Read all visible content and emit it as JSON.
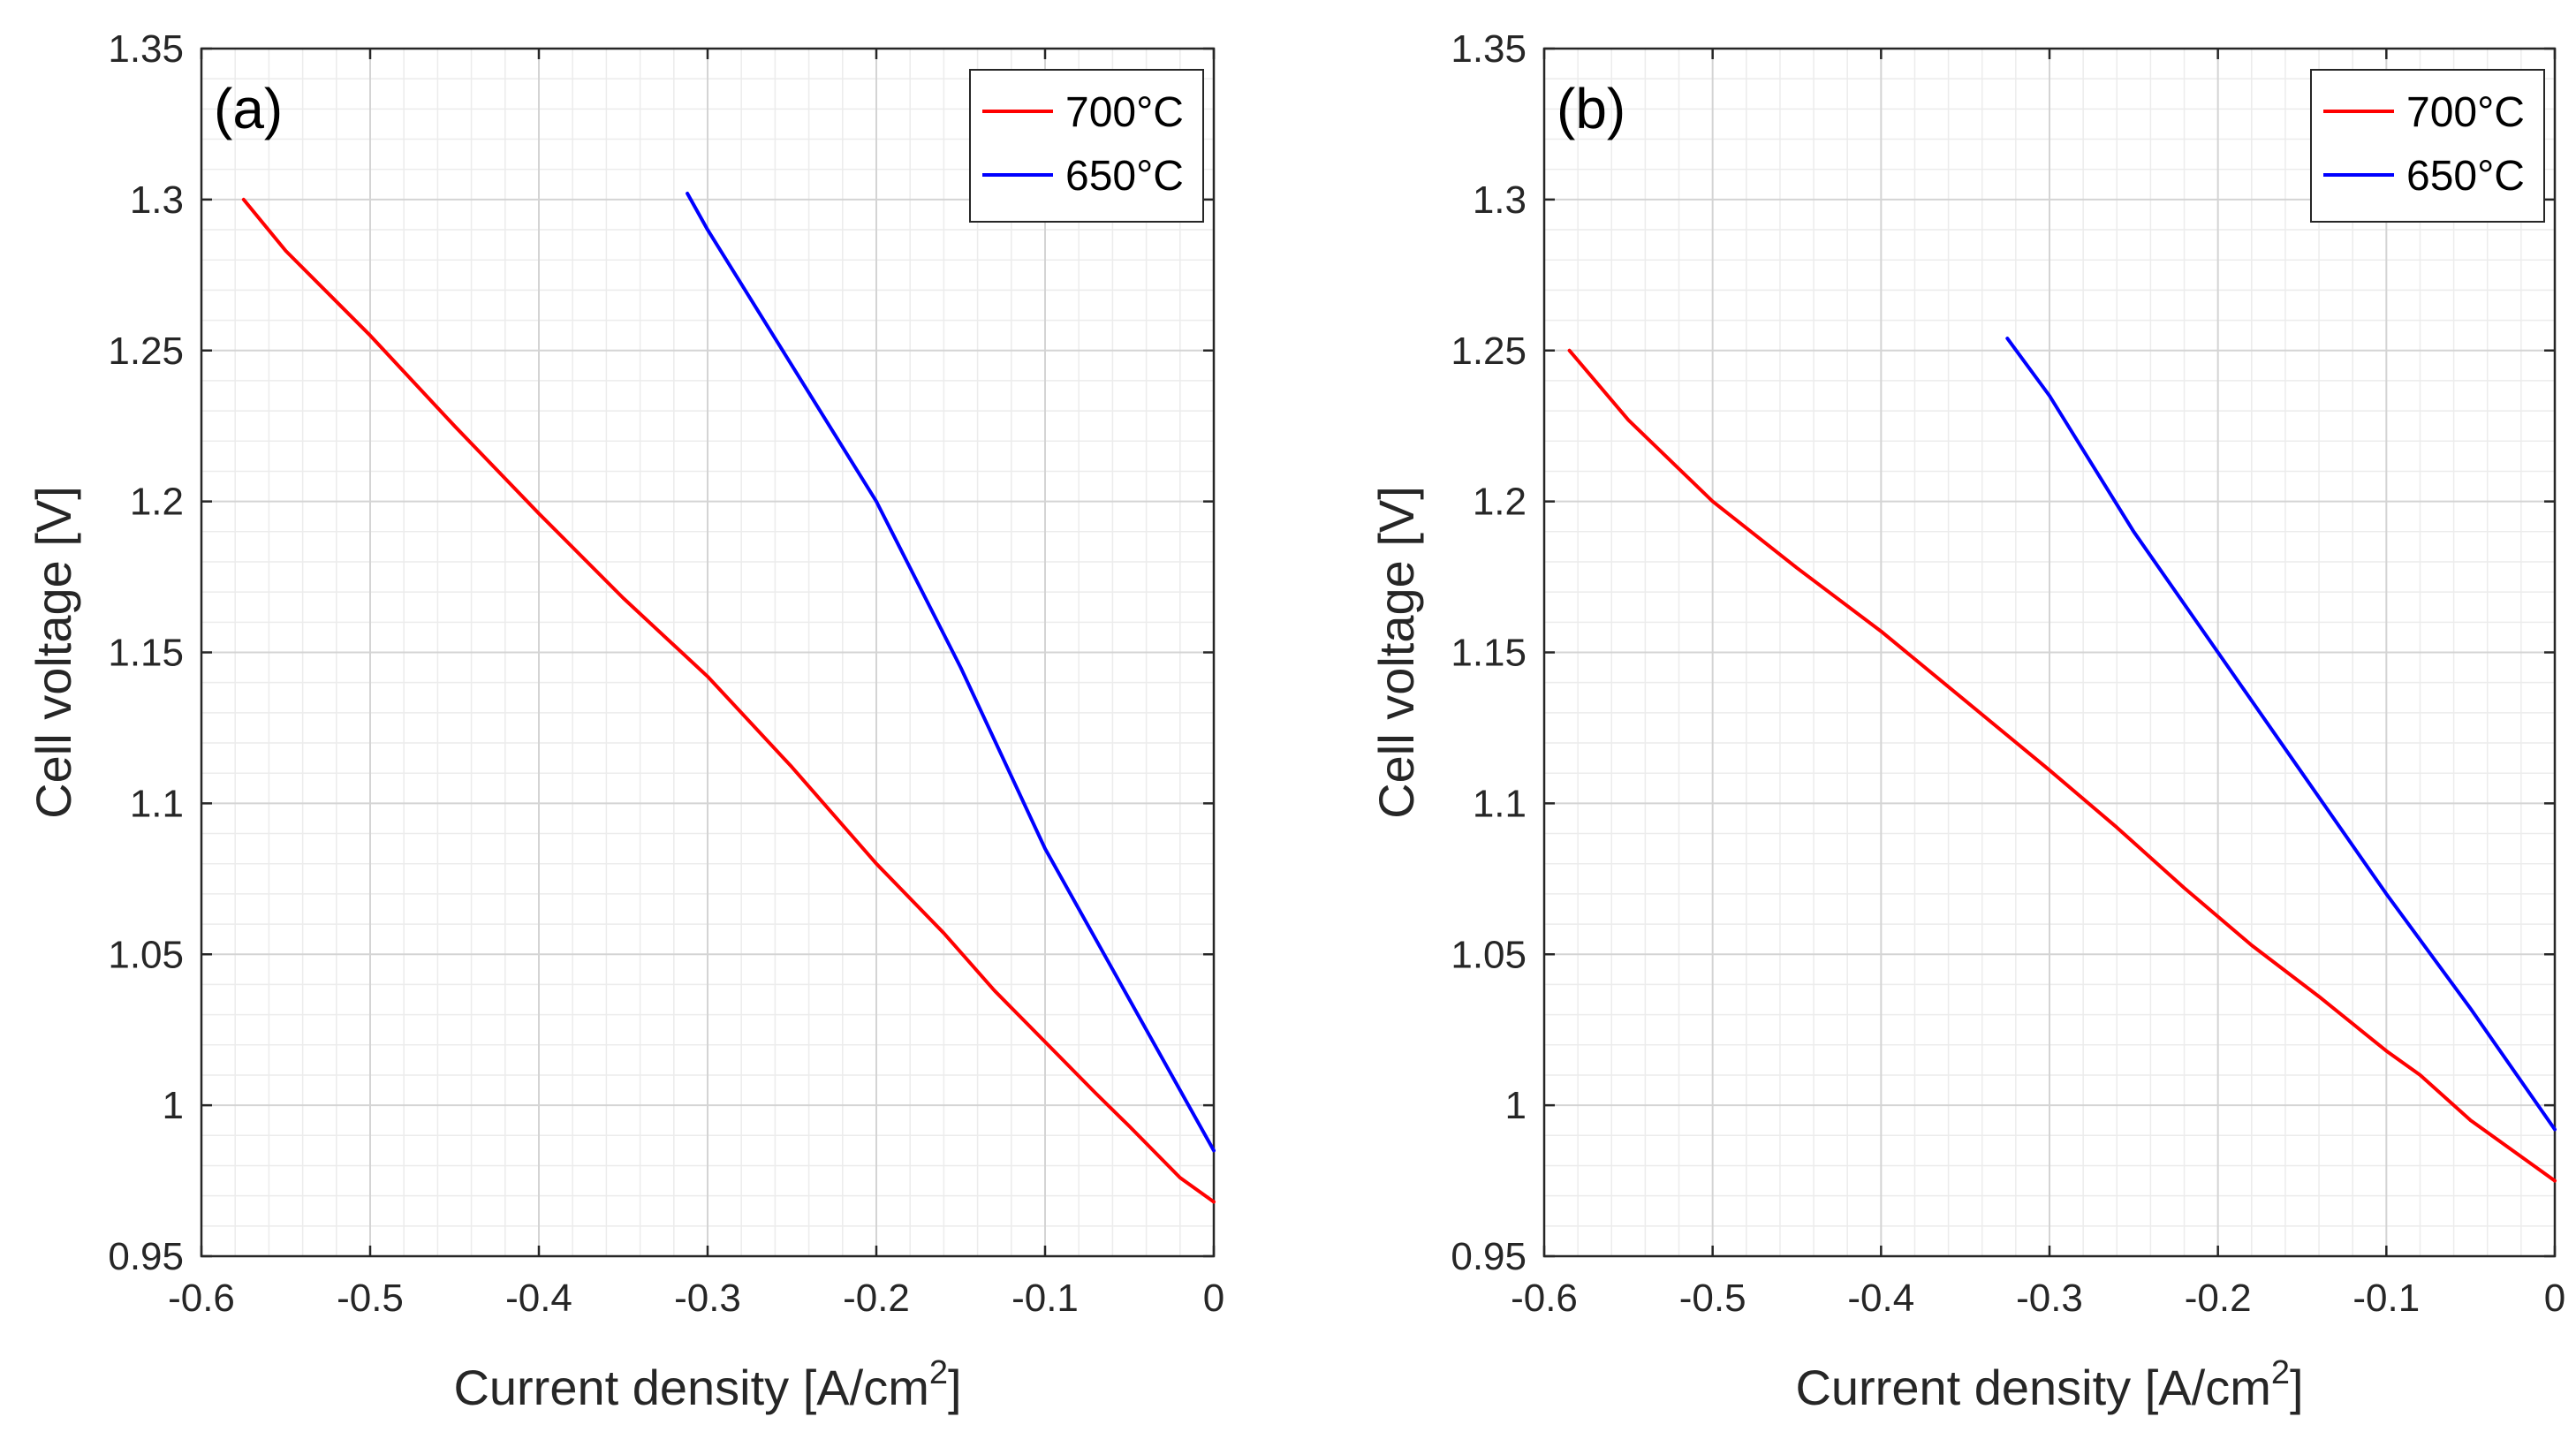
{
  "chart_data": [
    {
      "type": "line",
      "panel_label": "(a)",
      "xlabel": "Current density [A/cm",
      "xlabel_superscript": "2",
      "xlabel_suffix": "]",
      "ylabel": "Cell voltage [V]",
      "xlim": [
        -0.6,
        0
      ],
      "ylim": [
        0.95,
        1.35
      ],
      "xticks": [
        -0.6,
        -0.5,
        -0.4,
        -0.3,
        -0.2,
        -0.1,
        0
      ],
      "xtick_labels": [
        "-0.6",
        "-0.5",
        "-0.4",
        "-0.3",
        "-0.2",
        "-0.1",
        "0"
      ],
      "yticks": [
        0.95,
        1,
        1.05,
        1.1,
        1.15,
        1.2,
        1.25,
        1.3,
        1.35
      ],
      "ytick_labels": [
        "0.95",
        "1",
        "1.05",
        "1.1",
        "1.15",
        "1.2",
        "1.25",
        "1.3",
        "1.35"
      ],
      "grid": true,
      "minor_grid": true,
      "legend_position": "top-right",
      "series": [
        {
          "name": "700°C",
          "color": "#ff0000",
          "x": [
            0,
            -0.02,
            -0.05,
            -0.07,
            -0.1,
            -0.13,
            -0.16,
            -0.2,
            -0.25,
            -0.3,
            -0.35,
            -0.4,
            -0.45,
            -0.5,
            -0.55,
            -0.575
          ],
          "y": [
            0.968,
            0.976,
            0.993,
            1.004,
            1.021,
            1.038,
            1.057,
            1.08,
            1.112,
            1.142,
            1.168,
            1.196,
            1.225,
            1.255,
            1.283,
            1.3
          ]
        },
        {
          "name": "650°C",
          "color": "#0000ff",
          "x": [
            0,
            -0.05,
            -0.1,
            -0.15,
            -0.2,
            -0.25,
            -0.3,
            -0.312
          ],
          "y": [
            0.985,
            1.035,
            1.085,
            1.145,
            1.2,
            1.245,
            1.29,
            1.302
          ]
        }
      ]
    },
    {
      "type": "line",
      "panel_label": "(b)",
      "xlabel": "Current density [A/cm",
      "xlabel_superscript": "2",
      "xlabel_suffix": "]",
      "ylabel": "Cell voltage [V]",
      "xlim": [
        -0.6,
        0
      ],
      "ylim": [
        0.95,
        1.35
      ],
      "xticks": [
        -0.6,
        -0.5,
        -0.4,
        -0.3,
        -0.2,
        -0.1,
        0
      ],
      "xtick_labels": [
        "-0.6",
        "-0.5",
        "-0.4",
        "-0.3",
        "-0.2",
        "-0.1",
        "0"
      ],
      "yticks": [
        0.95,
        1,
        1.05,
        1.1,
        1.15,
        1.2,
        1.25,
        1.3,
        1.35
      ],
      "ytick_labels": [
        "0.95",
        "1",
        "1.05",
        "1.1",
        "1.15",
        "1.2",
        "1.25",
        "1.3",
        "1.35"
      ],
      "grid": true,
      "minor_grid": true,
      "legend_position": "top-right",
      "series": [
        {
          "name": "700°C",
          "color": "#ff0000",
          "x": [
            0,
            -0.02,
            -0.05,
            -0.08,
            -0.1,
            -0.14,
            -0.18,
            -0.22,
            -0.26,
            -0.3,
            -0.35,
            -0.4,
            -0.45,
            -0.5,
            -0.55,
            -0.585
          ],
          "y": [
            0.975,
            0.983,
            0.995,
            1.01,
            1.018,
            1.036,
            1.053,
            1.072,
            1.092,
            1.111,
            1.134,
            1.157,
            1.178,
            1.2,
            1.227,
            1.25
          ]
        },
        {
          "name": "650°C",
          "color": "#0000ff",
          "x": [
            0,
            -0.05,
            -0.1,
            -0.15,
            -0.2,
            -0.25,
            -0.3,
            -0.325
          ],
          "y": [
            0.992,
            1.032,
            1.07,
            1.11,
            1.15,
            1.19,
            1.235,
            1.254
          ]
        }
      ]
    }
  ]
}
